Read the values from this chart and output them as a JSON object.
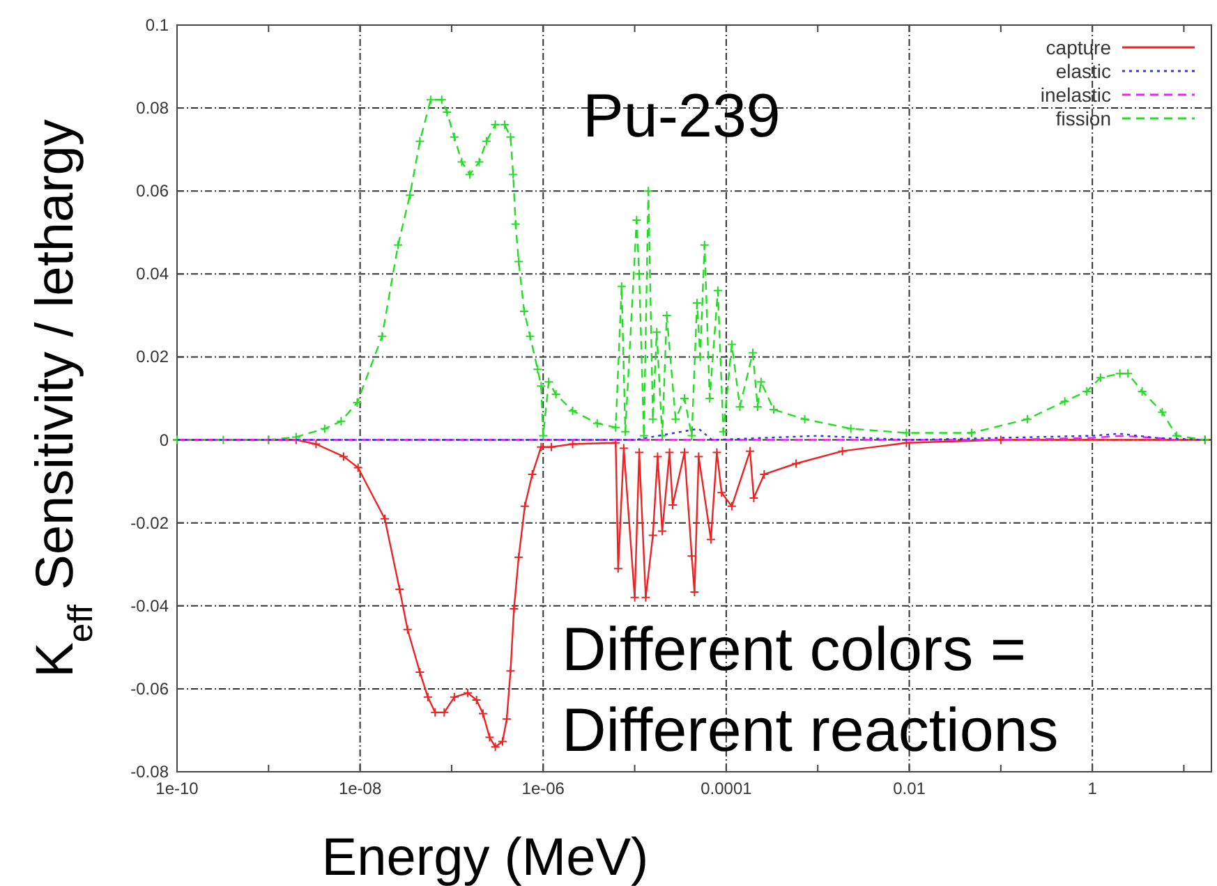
{
  "chart_data": {
    "type": "line",
    "xlabel": "Energy (MeV)",
    "ylabel": "K$_{eff}$ Sensitivity / lethargy",
    "log": "x",
    "grid": true,
    "legend": "top right",
    "xlim": [
      1e-10,
      20
    ],
    "ylim": [
      -0.08,
      0.1
    ],
    "xticks": [
      {
        "value": 1e-10,
        "label": "1e-10"
      },
      {
        "value": 1e-09,
        "label": null
      },
      {
        "value": 1e-08,
        "label": "1e-08"
      },
      {
        "value": 1e-07,
        "label": null
      },
      {
        "value": 1e-06,
        "label": "1e-06"
      },
      {
        "value": 1e-05,
        "label": null
      },
      {
        "value": 0.0001,
        "label": "0.0001"
      },
      {
        "value": 0.001,
        "label": null
      },
      {
        "value": 0.01,
        "label": "0.01"
      },
      {
        "value": 0.1,
        "label": null
      },
      {
        "value": 1,
        "label": "1"
      },
      {
        "value": 10,
        "label": null
      }
    ],
    "yticks": [
      -0.08,
      -0.06,
      -0.04,
      -0.02,
      0,
      0.02,
      0.04,
      0.06,
      0.08,
      0.1
    ],
    "annotations": [
      "Pu-239",
      "Different colors =\nDifferent reactions"
    ],
    "series": [
      {
        "name": "capture",
        "color": "#ee2222",
        "line_style": "solid",
        "marker": "cross",
        "x": [
          1e-10,
          1e-09,
          2e-09,
          3.3e-09,
          6.6e-09,
          9.5e-09,
          1.86e-08,
          2.7e-08,
          3.3e-08,
          4.5e-08,
          5.5e-08,
          6.6e-08,
          8.3e-08,
          1.07e-07,
          1.5e-07,
          1.87e-07,
          2.2e-07,
          2.6e-07,
          3e-07,
          3.6e-07,
          4e-07,
          4.4e-07,
          4.8e-07,
          5.4e-07,
          6.3e-07,
          7.6e-07,
          9.5e-07,
          1.23e-06,
          2.1e-06,
          6.2e-06,
          6.6e-06,
          7.6e-06,
          1e-05,
          1.12e-05,
          1.32e-05,
          1.58e-05,
          1.78e-05,
          2e-05,
          2.4e-05,
          2.6e-05,
          3.5e-05,
          4.2e-05,
          4.5e-05,
          5e-05,
          6.8e-05,
          7.9e-05,
          8.9e-05,
          0.000115,
          0.000182,
          0.0002,
          0.00026,
          0.00058,
          0.00186,
          0.0093,
          0.1,
          17
        ],
        "values": [
          0,
          0,
          0,
          -0.001,
          -0.004,
          -0.0067,
          -0.019,
          -0.036,
          -0.0457,
          -0.056,
          -0.062,
          -0.0657,
          -0.0657,
          -0.062,
          -0.061,
          -0.0627,
          -0.066,
          -0.0717,
          -0.074,
          -0.0727,
          -0.0673,
          -0.0557,
          -0.0407,
          -0.0283,
          -0.016,
          -0.0083,
          -0.0017,
          -0.0017,
          -0.001,
          -0.0007,
          -0.031,
          -0.002,
          -0.038,
          -0.003,
          -0.038,
          -0.023,
          -0.004,
          -0.022,
          -0.003,
          -0.0157,
          -0.003,
          -0.028,
          -0.0367,
          -0.004,
          -0.024,
          -0.003,
          -0.0127,
          -0.016,
          -0.0027,
          -0.014,
          -0.0083,
          -0.0057,
          -0.0027,
          -0.0007,
          0,
          0
        ]
      },
      {
        "name": "elastic",
        "color": "#3333ee",
        "line_style": "dotted",
        "marker": "none",
        "x": [
          1e-10,
          1e-05,
          5e-05,
          7e-05,
          0.001,
          0.01,
          1,
          2,
          5,
          17
        ],
        "values": [
          0,
          0,
          0.0027,
          0,
          0.001,
          0,
          0.001,
          0.0015,
          0.0005,
          0
        ]
      },
      {
        "name": "inelastic",
        "color": "#ee22ee",
        "line_style": "dashed",
        "marker": "none",
        "x": [
          1e-10,
          0.1,
          1,
          2,
          5,
          8
        ],
        "values": [
          0,
          0,
          0.0005,
          0.001,
          0.0005,
          0
        ]
      },
      {
        "name": "fission",
        "color": "#22dd22",
        "line_style": "dashed",
        "marker": "cross",
        "x": [
          1e-10,
          3.2e-10,
          1e-09,
          2e-09,
          4.1e-09,
          6.2e-09,
          9.3e-09,
          1.74e-08,
          2.6e-08,
          3.5e-08,
          4.5e-08,
          5.9e-08,
          7.8e-08,
          8.9e-08,
          1.07e-07,
          1.29e-07,
          1.58e-07,
          2e-07,
          2.4e-07,
          3e-07,
          3.8e-07,
          4.4e-07,
          4.7e-07,
          5e-07,
          5.4e-07,
          6.2e-07,
          7.2e-07,
          8.7e-07,
          9.5e-07,
          1e-06,
          1.15e-06,
          1.38e-06,
          2.1e-06,
          3.9e-06,
          6.2e-06,
          7.2e-06,
          7.9e-06,
          1.05e-05,
          1.12e-05,
          1.26e-05,
          1.41e-05,
          1.58e-05,
          1.74e-05,
          2e-05,
          2.24e-05,
          2.8e-05,
          3.5e-05,
          4.2e-05,
          4.8e-05,
          5.2e-05,
          5.8e-05,
          6.6e-05,
          8.1e-05,
          9.3e-05,
          0.000115,
          0.000141,
          0.000195,
          0.00022,
          0.00024,
          0.00033,
          0.00072,
          0.0023,
          0.0093,
          0.048,
          0.195,
          0.5,
          0.87,
          1.23,
          2.0,
          2.45,
          3.5,
          5.8,
          8.3,
          17
        ],
        "values": [
          0,
          0,
          0,
          0.0007,
          0.0027,
          0.0045,
          0.009,
          0.025,
          0.047,
          0.059,
          0.072,
          0.082,
          0.082,
          0.079,
          0.073,
          0.067,
          0.064,
          0.067,
          0.072,
          0.076,
          0.076,
          0.073,
          0.064,
          0.052,
          0.043,
          0.031,
          0.025,
          0.017,
          0.013,
          0.001,
          0.014,
          0.011,
          0.007,
          0.004,
          0.003,
          0.037,
          0.002,
          0.053,
          0.04,
          0.001,
          0.06,
          0.005,
          0.026,
          0.001,
          0.03,
          0.005,
          0.01,
          0.001,
          0.033,
          0.02,
          0.047,
          0.01,
          0.036,
          0.002,
          0.023,
          0.008,
          0.021,
          0.008,
          0.014,
          0.0073,
          0.005,
          0.0027,
          0.0017,
          0.0017,
          0.005,
          0.0093,
          0.0117,
          0.015,
          0.016,
          0.016,
          0.0117,
          0.0067,
          0.001,
          0
        ]
      }
    ]
  }
}
